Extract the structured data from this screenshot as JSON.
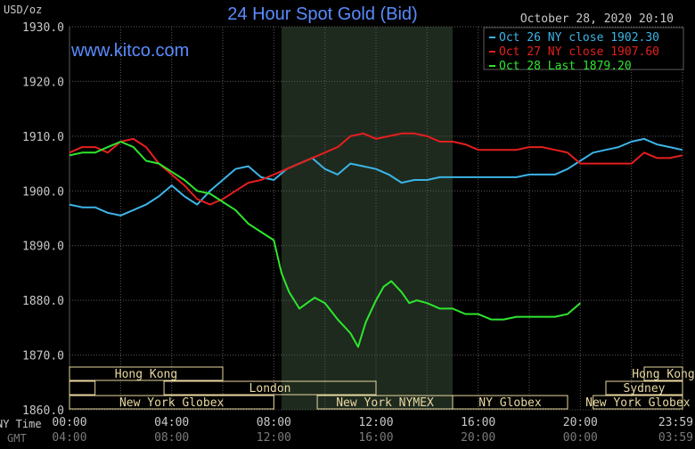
{
  "chart_data": {
    "type": "line",
    "title": "24 Hour Spot Gold (Bid)",
    "ylabel": "USD/oz",
    "watermark": "www.kitco.com",
    "timestamp": "October 28, 2020 20:10",
    "ylim": [
      1860,
      1930
    ],
    "yticks": [
      "1930.0",
      "1920.0",
      "1910.0",
      "1900.0",
      "1890.0",
      "1880.0",
      "1870.0",
      "1860.0"
    ],
    "x_row_label": "NY Time",
    "x_row2_label": "GMT",
    "xticks_ny": [
      "00:00",
      "04:00",
      "08:00",
      "12:00",
      "16:00",
      "20:00",
      "23:59"
    ],
    "xticks_gmt": [
      "04:00",
      "08:00",
      "12:00",
      "16:00",
      "20:00",
      "00:00",
      "03:59"
    ],
    "grid": true,
    "legend_position": "top-right",
    "colors": {
      "oct26": "#3cb4e6",
      "oct27": "#e61e1e",
      "oct28": "#2ee62e",
      "grid": "#5a5a5a",
      "axis_text": "#c8c8c8",
      "title": "#5a8cff",
      "session": "#e8d8a0",
      "shade": "#1e2a1e"
    },
    "sessions": [
      {
        "label": "Hong Kong",
        "row": 0,
        "start": 0,
        "end": 6
      },
      {
        "label": "Hong Kong",
        "row": 0,
        "start": 22.5,
        "end": 24
      },
      {
        "label": "",
        "row": 1,
        "start": 0,
        "end": 1
      },
      {
        "label": "London",
        "row": 1,
        "start": 3.7,
        "end": 12
      },
      {
        "label": "Sydney",
        "row": 1,
        "start": 21,
        "end": 24
      },
      {
        "label": "New York Globex",
        "row": 2,
        "start": 0,
        "end": 8
      },
      {
        "label": "New York NYMEX",
        "row": 2,
        "start": 9.7,
        "end": 15
      },
      {
        "label": "NY Globex",
        "row": 2,
        "start": 15,
        "end": 19.5
      },
      {
        "label": "New York Globex",
        "row": 2,
        "start": 20.5,
        "end": 24
      }
    ],
    "shade_range": [
      8.3,
      15
    ],
    "series": [
      {
        "name": "Oct 26 NY close 1902.30",
        "color": "#3cb4e6",
        "x": [
          0,
          0.5,
          1,
          1.5,
          2,
          2.5,
          3,
          3.5,
          4,
          4.5,
          5,
          5.5,
          6,
          6.5,
          7,
          7.5,
          8,
          8.5,
          9,
          9.5,
          10,
          10.5,
          11,
          11.5,
          12,
          12.5,
          13,
          13.5,
          14,
          14.5,
          15,
          15.5,
          16,
          16.5,
          17,
          17.5,
          18,
          18.5,
          19,
          19.5,
          20,
          20.5,
          21,
          21.5,
          22,
          22.5,
          23,
          23.5,
          23.99
        ],
        "y": [
          1897.5,
          1897,
          1897,
          1896,
          1895.5,
          1896.5,
          1897.5,
          1899,
          1901,
          1899,
          1897.5,
          1900,
          1902,
          1904,
          1904.5,
          1902.5,
          1902,
          1904,
          1905,
          1906,
          1904,
          1903,
          1905,
          1904.5,
          1904,
          1903,
          1901.5,
          1902,
          1902,
          1902.5,
          1902.5,
          1902.5,
          1902.5,
          1902.5,
          1902.5,
          1902.5,
          1903,
          1903,
          1903,
          1904,
          1905.5,
          1907,
          1907.5,
          1908,
          1909,
          1909.5,
          1908.5,
          1908,
          1907.5
        ]
      },
      {
        "name": "Oct 27 NY close 1907.60",
        "color": "#e61e1e",
        "x": [
          0,
          0.5,
          1,
          1.5,
          2,
          2.5,
          3,
          3.5,
          4,
          4.5,
          5,
          5.5,
          6,
          6.5,
          7,
          7.5,
          8,
          8.5,
          9,
          9.5,
          10,
          10.5,
          11,
          11.5,
          12,
          12.5,
          13,
          13.5,
          14,
          14.5,
          15,
          15.5,
          16,
          16.5,
          17,
          17.5,
          18,
          18.5,
          19,
          19.5,
          20,
          20.5,
          21,
          21.5,
          22,
          22.5,
          23,
          23.5,
          23.99
        ],
        "y": [
          1907,
          1908,
          1908,
          1907,
          1909,
          1909.5,
          1908,
          1905,
          1903,
          1901,
          1898.5,
          1897.5,
          1898.5,
          1900,
          1901.5,
          1902,
          1903,
          1904,
          1905,
          1906,
          1907,
          1908,
          1910,
          1910.5,
          1909.5,
          1910,
          1910.5,
          1910.5,
          1910,
          1909,
          1909,
          1908.5,
          1907.5,
          1907.5,
          1907.5,
          1907.5,
          1908,
          1908,
          1907.5,
          1907,
          1905,
          1905,
          1905,
          1905,
          1905,
          1907,
          1906,
          1906,
          1906.5
        ]
      },
      {
        "name": "Oct 28 Last 1879.20",
        "color": "#2ee62e",
        "x": [
          0,
          0.5,
          1,
          1.5,
          2,
          2.5,
          3,
          3.5,
          4,
          4.5,
          5,
          5.5,
          6,
          6.5,
          7,
          7.5,
          8,
          8.3,
          8.6,
          9,
          9.3,
          9.6,
          10,
          10.5,
          11,
          11.3,
          11.6,
          12,
          12.3,
          12.6,
          13,
          13.3,
          13.6,
          14,
          14.5,
          15,
          15.5,
          16,
          16.5,
          17,
          17.5,
          18,
          18.5,
          19,
          19.5,
          20
        ],
        "y": [
          1906.5,
          1907,
          1907,
          1908,
          1909,
          1908,
          1905.5,
          1905,
          1903.5,
          1902,
          1900,
          1899.5,
          1898,
          1896.5,
          1894,
          1892.5,
          1891,
          1885,
          1881.5,
          1878.5,
          1879.5,
          1880.5,
          1879.5,
          1876.5,
          1874,
          1871.5,
          1876,
          1880,
          1882.5,
          1883.5,
          1881.5,
          1879.5,
          1880,
          1879.5,
          1878.5,
          1878.5,
          1877.5,
          1877.5,
          1876.5,
          1876.5,
          1877,
          1877,
          1877,
          1877,
          1877.5,
          1879.5
        ]
      }
    ]
  }
}
